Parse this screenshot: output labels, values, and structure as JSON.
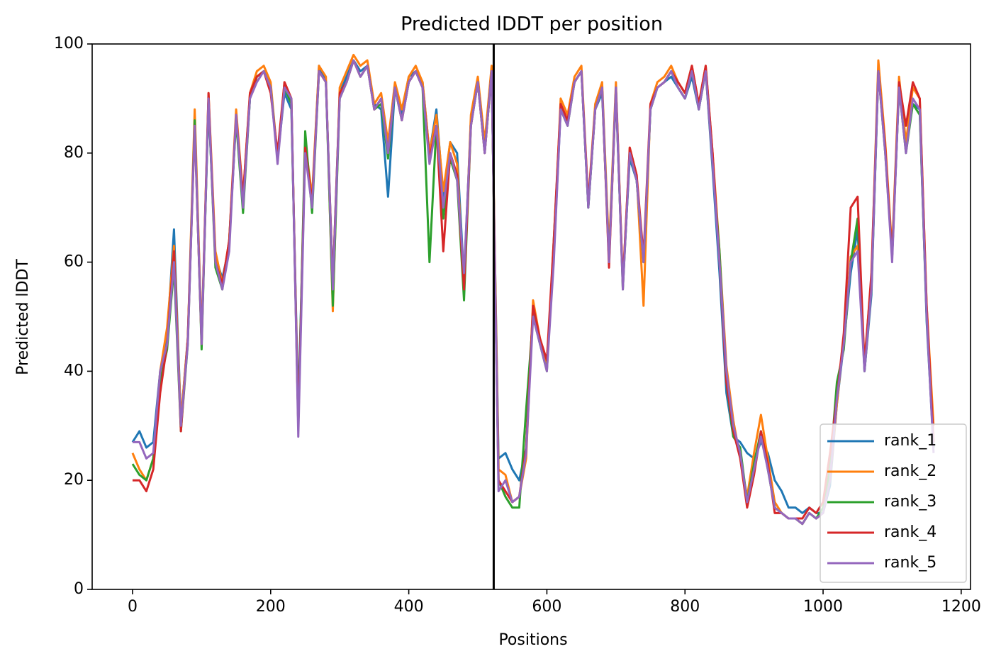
{
  "chart_data": {
    "type": "line",
    "title": "Predicted lDDT per position",
    "xlabel": "Positions",
    "ylabel": "Predicted lDDT",
    "xlim": [
      -58.5,
      1213.5
    ],
    "ylim": [
      0,
      100
    ],
    "xticks": [
      0,
      200,
      400,
      600,
      800,
      1000,
      1200
    ],
    "yticks": [
      0,
      20,
      40,
      60,
      80,
      100
    ],
    "legend": "lower right",
    "vline_x": 523,
    "vline_color": "#000000",
    "x": [
      0,
      10,
      20,
      30,
      40,
      50,
      60,
      70,
      80,
      90,
      100,
      110,
      120,
      130,
      140,
      150,
      160,
      170,
      180,
      190,
      200,
      210,
      220,
      230,
      240,
      250,
      260,
      270,
      280,
      290,
      300,
      310,
      320,
      330,
      340,
      350,
      360,
      370,
      380,
      390,
      400,
      410,
      420,
      430,
      440,
      450,
      460,
      470,
      480,
      490,
      500,
      510,
      520,
      530,
      540,
      550,
      560,
      570,
      580,
      590,
      600,
      610,
      620,
      630,
      640,
      650,
      660,
      670,
      680,
      690,
      700,
      710,
      720,
      730,
      740,
      750,
      760,
      770,
      780,
      790,
      800,
      810,
      820,
      830,
      840,
      850,
      860,
      870,
      880,
      890,
      900,
      910,
      920,
      930,
      940,
      950,
      960,
      970,
      980,
      990,
      1000,
      1010,
      1020,
      1030,
      1040,
      1050,
      1060,
      1070,
      1080,
      1090,
      1100,
      1110,
      1120,
      1130,
      1140,
      1150,
      1160
    ],
    "series": [
      {
        "name": "rank_1",
        "color": "#1f77b4",
        "values": [
          27,
          29,
          26,
          27,
          40,
          46,
          66,
          31,
          46,
          86,
          46,
          89,
          61,
          57,
          63,
          87,
          71,
          90,
          94,
          95,
          92,
          79,
          91,
          88,
          33,
          81,
          71,
          96,
          93,
          56,
          91,
          94,
          97,
          95,
          96,
          89,
          88,
          72,
          92,
          87,
          94,
          95,
          93,
          80,
          88,
          72,
          82,
          80,
          57,
          86,
          93,
          81,
          94,
          24,
          25,
          22,
          20,
          26,
          52,
          45,
          41,
          61,
          88,
          86,
          93,
          95,
          70,
          88,
          91,
          61,
          91,
          56,
          79,
          75,
          60,
          88,
          92,
          93,
          94,
          92,
          90,
          94,
          88,
          95,
          77,
          58,
          36,
          28,
          27,
          25,
          24,
          27,
          25,
          20,
          18,
          15,
          15,
          14,
          15,
          14,
          14,
          19,
          34,
          45,
          58,
          66,
          40,
          54,
          95,
          81,
          61,
          92,
          81,
          89,
          88,
          49,
          26
        ]
      },
      {
        "name": "rank_2",
        "color": "#ff7f0e",
        "values": [
          25,
          22,
          20,
          24,
          40,
          48,
          63,
          31,
          46,
          88,
          46,
          91,
          62,
          56,
          64,
          88,
          72,
          91,
          95,
          96,
          93,
          79,
          93,
          90,
          30,
          82,
          72,
          96,
          94,
          51,
          92,
          95,
          98,
          96,
          97,
          89,
          91,
          82,
          93,
          88,
          94,
          96,
          93,
          80,
          87,
          73,
          82,
          78,
          55,
          87,
          94,
          82,
          96,
          22,
          21,
          16,
          17,
          24,
          53,
          46,
          41,
          62,
          90,
          87,
          94,
          96,
          71,
          89,
          93,
          62,
          93,
          56,
          81,
          76,
          52,
          89,
          93,
          94,
          96,
          93,
          91,
          96,
          89,
          96,
          80,
          62,
          41,
          31,
          24,
          17,
          25,
          32,
          24,
          16,
          14,
          13,
          13,
          12,
          14,
          13,
          14,
          20,
          34,
          46,
          61,
          63,
          42,
          57,
          97,
          82,
          62,
          94,
          82,
          92,
          90,
          52,
          30
        ]
      },
      {
        "name": "rank_3",
        "color": "#2ca02c",
        "values": [
          23,
          21,
          20,
          24,
          38,
          44,
          59,
          29,
          45,
          86,
          44,
          90,
          59,
          55,
          64,
          86,
          69,
          90,
          94,
          95,
          92,
          79,
          92,
          89,
          30,
          84,
          69,
          95,
          93,
          52,
          90,
          93,
          97,
          94,
          96,
          88,
          89,
          79,
          92,
          86,
          93,
          95,
          92,
          60,
          85,
          68,
          79,
          75,
          53,
          85,
          93,
          80,
          95,
          20,
          17,
          15,
          15,
          33,
          50,
          45,
          40,
          64,
          88,
          85,
          93,
          95,
          70,
          88,
          92,
          60,
          92,
          55,
          80,
          75,
          60,
          88,
          92,
          93,
          95,
          92,
          90,
          95,
          88,
          95,
          78,
          62,
          38,
          28,
          26,
          16,
          23,
          29,
          22,
          15,
          14,
          13,
          13,
          12,
          14,
          13,
          15,
          22,
          38,
          44,
          60,
          68,
          40,
          55,
          95,
          80,
          61,
          92,
          80,
          89,
          87,
          50,
          26
        ]
      },
      {
        "name": "rank_4",
        "color": "#d62728",
        "values": [
          20,
          20,
          18,
          22,
          36,
          45,
          62,
          29,
          46,
          85,
          45,
          91,
          60,
          56,
          64,
          87,
          72,
          91,
          94,
          95,
          91,
          80,
          93,
          90,
          30,
          81,
          71,
          95,
          93,
          56,
          91,
          93,
          97,
          94,
          96,
          88,
          90,
          80,
          92,
          86,
          93,
          95,
          92,
          79,
          85,
          62,
          80,
          76,
          55,
          85,
          93,
          80,
          95,
          20,
          18,
          16,
          17,
          26,
          52,
          46,
          42,
          64,
          89,
          86,
          93,
          95,
          71,
          88,
          92,
          59,
          92,
          56,
          81,
          76,
          61,
          89,
          92,
          93,
          95,
          93,
          91,
          96,
          89,
          96,
          80,
          60,
          38,
          29,
          24,
          15,
          21,
          29,
          23,
          14,
          14,
          13,
          13,
          13,
          15,
          14,
          16,
          25,
          35,
          47,
          70,
          72,
          41,
          58,
          95,
          81,
          61,
          93,
          85,
          93,
          90,
          52,
          27
        ]
      },
      {
        "name": "rank_5",
        "color": "#9467bd",
        "values": [
          27,
          27,
          24,
          25,
          40,
          45,
          60,
          30,
          45,
          85,
          45,
          90,
          60,
          55,
          62,
          87,
          70,
          90,
          93,
          95,
          92,
          78,
          92,
          90,
          28,
          80,
          70,
          95,
          93,
          55,
          90,
          93,
          97,
          94,
          96,
          88,
          90,
          80,
          92,
          86,
          93,
          95,
          92,
          78,
          85,
          70,
          80,
          75,
          58,
          85,
          93,
          80,
          95,
          18,
          20,
          16,
          17,
          25,
          50,
          45,
          40,
          60,
          88,
          85,
          93,
          95,
          70,
          88,
          92,
          60,
          92,
          55,
          80,
          75,
          60,
          88,
          92,
          93,
          95,
          92,
          90,
          95,
          88,
          95,
          78,
          60,
          40,
          30,
          25,
          16,
          22,
          28,
          22,
          15,
          14,
          13,
          13,
          12,
          14,
          13,
          14,
          20,
          35,
          45,
          60,
          62,
          40,
          55,
          95,
          80,
          60,
          92,
          80,
          90,
          88,
          50,
          25
        ]
      }
    ]
  }
}
